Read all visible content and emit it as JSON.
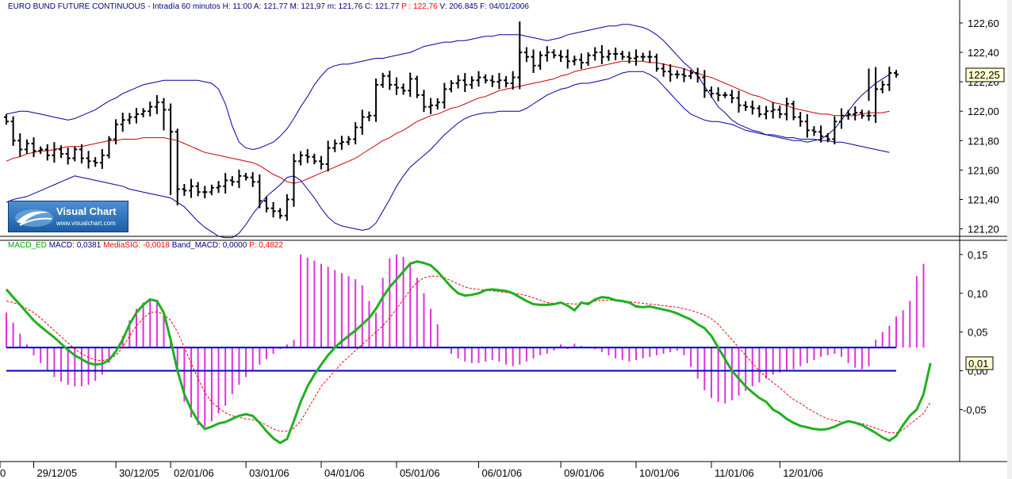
{
  "header": {
    "title": "EURO BUND FUTURE CONTINUOUS - Intradía 60 minutos",
    "fields": [
      {
        "text": "H: 11:00",
        "color": "#000080"
      },
      {
        "text": "A: 121,77",
        "color": "#000080"
      },
      {
        "text": "M: 121,97",
        "color": "#000080"
      },
      {
        "text": "m: 121,76",
        "color": "#000080"
      },
      {
        "text": "C: 121,77",
        "color": "#000080"
      },
      {
        "text": "P : 122,76",
        "color": "#ff0000"
      },
      {
        "text": "V: 206.845",
        "color": "#000080"
      },
      {
        "text": "F: 04/01/2006",
        "color": "#000080"
      }
    ]
  },
  "macd_header": {
    "fields": [
      {
        "text": "MACD_ED",
        "color": "#00aa00"
      },
      {
        "text": "MACD: 0,0381",
        "color": "#000080"
      },
      {
        "text": "MediaSIG: -0,0018",
        "color": "#ff0000"
      },
      {
        "text": "Band_MACD: 0,0000",
        "color": "#000080"
      },
      {
        "text": "P: 0,4822",
        "color": "#ff0000"
      }
    ]
  },
  "logo": {
    "name": "Visual Chart",
    "url": "www.visualchart.com"
  },
  "x_axis_labels": [
    "0",
    "29/12/05",
    "30/12/05",
    "02/01/06",
    "03/01/06",
    "04/01/06",
    "05/01/06",
    "06/01/06",
    "09/01/06",
    "10/01/06",
    "11/01/06",
    "12/01/06"
  ],
  "colors": {
    "price": "#000000",
    "bb_outer": "#0000a0",
    "bb_mid": "#cc0000",
    "macd": "#20b020",
    "signal": "#ff0000",
    "hist": "#e030e0",
    "band": "#0000cc"
  },
  "chart_data": [
    {
      "type": "line",
      "title": "EURO BUND FUTURE CONTINUOUS - Intradía 60 minutos",
      "subtype": "ohlc-bars with bollinger bands",
      "y_ticks": [
        "122,60",
        "122,40",
        "122,20",
        "122,00",
        "121,80",
        "121,60",
        "121,40",
        "121,20"
      ],
      "ylim": [
        121.16,
        122.67
      ],
      "last_price_label": "122,25",
      "close": [
        121.93,
        121.8,
        121.74,
        121.78,
        121.73,
        121.74,
        121.7,
        121.74,
        121.71,
        121.68,
        121.74,
        121.68,
        121.66,
        121.65,
        121.7,
        121.81,
        121.91,
        121.94,
        121.96,
        121.98,
        122.0,
        122.03,
        122.06,
        122.01,
        121.86,
        121.47,
        121.46,
        121.49,
        121.45,
        121.45,
        121.48,
        121.49,
        121.53,
        121.52,
        121.56,
        121.55,
        121.52,
        121.39,
        121.34,
        121.32,
        121.29,
        121.4,
        121.66,
        121.7,
        121.69,
        121.66,
        121.64,
        121.75,
        121.78,
        121.79,
        121.81,
        121.89,
        121.96,
        121.97,
        122.18,
        122.24,
        122.18,
        122.16,
        122.14,
        122.22,
        122.11,
        122.03,
        122.04,
        122.06,
        122.15,
        122.19,
        122.21,
        122.18,
        122.21,
        122.23,
        122.21,
        122.2,
        122.21,
        122.19,
        122.23,
        122.4,
        122.37,
        122.31,
        122.38,
        122.4,
        122.38,
        122.37,
        122.34,
        122.35,
        122.33,
        122.38,
        122.4,
        122.37,
        122.39,
        122.39,
        122.37,
        122.36,
        122.37,
        122.37,
        122.37,
        122.29,
        122.27,
        122.25,
        122.25,
        122.24,
        122.26,
        122.23,
        122.14,
        122.12,
        122.11,
        122.11,
        122.09,
        122.04,
        122.03,
        122.02,
        121.98,
        122.0,
        122.01,
        121.98,
        122.05,
        121.96,
        121.93,
        121.87,
        121.86,
        121.83,
        121.81,
        121.93,
        121.97,
        121.98,
        121.99,
        121.97,
        121.97,
        122.15,
        122.18,
        122.26,
        122.25
      ],
      "bb_mid": [
        121.66,
        121.68,
        121.69,
        121.71,
        121.72,
        121.73,
        121.73,
        121.74,
        121.75,
        121.76,
        121.76,
        121.76,
        121.77,
        121.78,
        121.79,
        121.8,
        121.8,
        121.81,
        121.81,
        121.81,
        121.82,
        121.82,
        121.82,
        121.82,
        121.81,
        121.8,
        121.78,
        121.76,
        121.74,
        121.72,
        121.71,
        121.7,
        121.69,
        121.68,
        121.67,
        121.66,
        121.65,
        121.63,
        121.6,
        121.57,
        121.55,
        121.52,
        121.51,
        121.52,
        121.54,
        121.56,
        121.58,
        121.6,
        121.62,
        121.64,
        121.66,
        121.68,
        121.71,
        121.74,
        121.77,
        121.8,
        121.82,
        121.85,
        121.87,
        121.9,
        121.93,
        121.95,
        121.97,
        121.98,
        122.0,
        122.02,
        122.03,
        122.05,
        122.07,
        122.09,
        122.1,
        122.12,
        122.14,
        122.15,
        122.16,
        122.17,
        122.18,
        122.19,
        122.2,
        122.21,
        122.22,
        122.24,
        122.25,
        122.27,
        122.28,
        122.29,
        122.3,
        122.31,
        122.32,
        122.33,
        122.34,
        122.34,
        122.34,
        122.34,
        122.33,
        122.33,
        122.32,
        122.31,
        122.3,
        122.29,
        122.27,
        122.26,
        122.24,
        122.23,
        122.21,
        122.19,
        122.17,
        122.15,
        122.13,
        122.11,
        122.1,
        122.08,
        122.06,
        122.05,
        122.04,
        122.02,
        122.01,
        122.0,
        121.99,
        121.98,
        121.98,
        121.97,
        121.97,
        121.97,
        121.97,
        121.98,
        121.99,
        121.99,
        121.99,
        122.0
      ],
      "bb_upper": [
        121.98,
        121.99,
        122.0,
        122.0,
        121.99,
        121.98,
        121.97,
        121.96,
        121.95,
        121.94,
        121.95,
        121.97,
        121.99,
        122.01,
        122.04,
        122.07,
        122.09,
        122.12,
        122.14,
        122.16,
        122.18,
        122.19,
        122.2,
        122.21,
        122.21,
        122.21,
        122.21,
        122.21,
        122.21,
        122.2,
        122.19,
        122.15,
        122.05,
        121.9,
        121.79,
        121.75,
        121.74,
        121.75,
        121.77,
        121.79,
        121.83,
        121.88,
        121.95,
        122.03,
        122.1,
        122.18,
        122.24,
        122.29,
        122.31,
        122.32,
        122.32,
        122.33,
        122.34,
        122.35,
        122.36,
        122.36,
        122.37,
        122.38,
        122.39,
        122.4,
        122.42,
        122.44,
        122.45,
        122.46,
        122.47,
        122.47,
        122.48,
        122.48,
        122.49,
        122.5,
        122.51,
        122.51,
        122.52,
        122.52,
        122.52,
        122.52,
        122.51,
        122.5,
        122.49,
        122.48,
        122.49,
        122.5,
        122.52,
        122.53,
        122.54,
        122.55,
        122.56,
        122.57,
        122.58,
        122.58,
        122.59,
        122.59,
        122.58,
        122.57,
        122.55,
        122.52,
        122.48,
        122.43,
        122.38,
        122.33,
        122.29,
        122.24,
        122.17,
        122.1,
        122.03,
        121.99,
        121.94,
        121.91,
        121.89,
        121.87,
        121.86,
        121.84,
        121.84,
        121.83,
        121.82,
        121.82,
        121.81,
        121.81,
        121.81,
        121.8,
        121.8,
        121.79,
        121.79,
        121.78,
        121.77,
        121.76,
        121.75,
        121.74,
        121.73,
        121.72
      ],
      "bb_lower": [
        121.38,
        121.4,
        121.41,
        121.42,
        121.44,
        121.46,
        121.48,
        121.5,
        121.52,
        121.54,
        121.56,
        121.55,
        121.54,
        121.53,
        121.52,
        121.51,
        121.5,
        121.49,
        121.47,
        121.46,
        121.45,
        121.44,
        121.43,
        121.42,
        121.41,
        121.38,
        121.35,
        121.3,
        121.25,
        121.21,
        121.18,
        121.15,
        121.14,
        121.14,
        121.17,
        121.23,
        121.3,
        121.36,
        121.42,
        121.46,
        121.5,
        121.55,
        121.56,
        121.53,
        121.47,
        121.41,
        121.34,
        121.28,
        121.24,
        121.22,
        121.21,
        121.2,
        121.19,
        121.2,
        121.24,
        121.32,
        121.4,
        121.49,
        121.56,
        121.62,
        121.66,
        121.7,
        121.74,
        121.79,
        121.84,
        121.88,
        121.92,
        121.95,
        121.97,
        121.98,
        121.99,
        121.99,
        122.0,
        122.0,
        122.0,
        122.0,
        122.02,
        122.05,
        122.08,
        122.11,
        122.13,
        122.15,
        122.16,
        122.18,
        122.19,
        122.19,
        122.2,
        122.21,
        122.22,
        122.24,
        122.26,
        122.27,
        122.27,
        122.27,
        122.25,
        122.22,
        122.17,
        122.12,
        122.07,
        122.02,
        121.98,
        121.96,
        121.94,
        121.93,
        121.93,
        121.92,
        121.91,
        121.89,
        121.87,
        121.86,
        121.85,
        121.84,
        121.83,
        121.82,
        121.81,
        121.8,
        121.8,
        121.79,
        121.8,
        121.81,
        121.84,
        121.88,
        121.94,
        122.0,
        122.06,
        122.11,
        122.15,
        122.19,
        122.22,
        122.25
      ]
    },
    {
      "type": "line",
      "title": "MACD_ED",
      "y_ticks": [
        "0,15",
        "0,10",
        "0,05",
        "0,00",
        "-0,05"
      ],
      "ylim": [
        -0.115,
        0.155
      ],
      "last_value_label": "0,01",
      "band_level": 0.03,
      "series": [
        {
          "name": "MACD",
          "values": [
            0.105,
            0.095,
            0.085,
            0.075,
            0.065,
            0.057,
            0.05,
            0.043,
            0.035,
            0.027,
            0.02,
            0.015,
            0.01,
            0.008,
            0.009,
            0.014,
            0.025,
            0.04,
            0.06,
            0.075,
            0.085,
            0.092,
            0.09,
            0.075,
            0.04,
            0.0,
            -0.03,
            -0.05,
            -0.065,
            -0.075,
            -0.072,
            -0.068,
            -0.066,
            -0.062,
            -0.058,
            -0.056,
            -0.058,
            -0.067,
            -0.078,
            -0.087,
            -0.093,
            -0.088,
            -0.065,
            -0.04,
            -0.02,
            -0.005,
            0.008,
            0.02,
            0.03,
            0.038,
            0.045,
            0.052,
            0.06,
            0.068,
            0.08,
            0.095,
            0.108,
            0.118,
            0.128,
            0.138,
            0.141,
            0.139,
            0.136,
            0.128,
            0.118,
            0.108,
            0.1,
            0.097,
            0.098,
            0.1,
            0.104,
            0.105,
            0.104,
            0.103,
            0.1,
            0.095,
            0.09,
            0.086,
            0.085,
            0.085,
            0.086,
            0.088,
            0.084,
            0.078,
            0.088,
            0.086,
            0.092,
            0.095,
            0.094,
            0.091,
            0.09,
            0.088,
            0.083,
            0.082,
            0.083,
            0.081,
            0.079,
            0.077,
            0.074,
            0.07,
            0.066,
            0.06,
            0.055,
            0.045,
            0.03,
            0.015,
            0.0,
            -0.01,
            -0.02,
            -0.028,
            -0.035,
            -0.04,
            -0.05,
            -0.055,
            -0.062,
            -0.067,
            -0.071,
            -0.073,
            -0.075,
            -0.076,
            -0.075,
            -0.072,
            -0.068,
            -0.065,
            -0.067,
            -0.07,
            -0.075,
            -0.08,
            -0.086,
            -0.09,
            -0.084,
            -0.07,
            -0.058,
            -0.05,
            -0.03,
            0.01
          ]
        },
        {
          "name": "MediaSIG",
          "values": [
            0.09,
            0.088,
            0.085,
            0.08,
            0.075,
            0.068,
            0.06,
            0.052,
            0.044,
            0.036,
            0.028,
            0.022,
            0.017,
            0.014,
            0.013,
            0.015,
            0.02,
            0.03,
            0.045,
            0.058,
            0.068,
            0.075,
            0.076,
            0.073,
            0.065,
            0.05,
            0.03,
            0.01,
            -0.01,
            -0.028,
            -0.04,
            -0.048,
            -0.054,
            -0.058,
            -0.06,
            -0.062,
            -0.063,
            -0.066,
            -0.07,
            -0.075,
            -0.078,
            -0.078,
            -0.074,
            -0.065,
            -0.05,
            -0.035,
            -0.02,
            -0.01,
            0.0,
            0.01,
            0.018,
            0.026,
            0.034,
            0.042,
            0.05,
            0.058,
            0.068,
            0.08,
            0.092,
            0.104,
            0.114,
            0.12,
            0.122,
            0.122,
            0.12,
            0.116,
            0.112,
            0.108,
            0.106,
            0.105,
            0.104,
            0.103,
            0.102,
            0.101,
            0.1,
            0.099,
            0.097,
            0.094,
            0.091,
            0.088,
            0.087,
            0.087,
            0.087,
            0.086,
            0.087,
            0.088,
            0.09,
            0.091,
            0.091,
            0.091,
            0.09,
            0.089,
            0.088,
            0.087,
            0.086,
            0.085,
            0.084,
            0.083,
            0.082,
            0.08,
            0.078,
            0.075,
            0.072,
            0.067,
            0.06,
            0.05,
            0.04,
            0.03,
            0.02,
            0.01,
            0.0,
            -0.008,
            -0.015,
            -0.022,
            -0.03,
            -0.037,
            -0.042,
            -0.048,
            -0.053,
            -0.058,
            -0.062,
            -0.064,
            -0.066,
            -0.066,
            -0.067,
            -0.068,
            -0.071,
            -0.074,
            -0.077,
            -0.08,
            -0.08,
            -0.076,
            -0.069,
            -0.062,
            -0.055,
            -0.04
          ]
        },
        {
          "name": "Band_MACD",
          "values": [
            0.0
          ]
        }
      ],
      "histogram": {
        "name": "Histogram",
        "baseline": 0.03,
        "values": [
          0.045,
          0.032,
          0.018,
          0.004,
          -0.01,
          -0.02,
          -0.03,
          -0.038,
          -0.044,
          -0.048,
          -0.05,
          -0.05,
          -0.048,
          -0.043,
          -0.035,
          -0.02,
          0.0,
          0.015,
          0.035,
          0.05,
          0.058,
          0.062,
          0.06,
          0.045,
          0.01,
          -0.03,
          -0.07,
          -0.09,
          -0.1,
          -0.102,
          -0.095,
          -0.085,
          -0.075,
          -0.06,
          -0.048,
          -0.038,
          -0.03,
          -0.022,
          -0.015,
          -0.008,
          -0.002,
          0.004,
          0.01,
          0.12,
          0.116,
          0.112,
          0.108,
          0.104,
          0.1,
          0.096,
          0.092,
          0.088,
          0.08,
          0.06,
          0.045,
          0.09,
          0.115,
          0.12,
          0.117,
          0.11,
          0.09,
          0.07,
          0.05,
          0.03,
          0.0,
          -0.008,
          -0.014,
          -0.018,
          -0.02,
          -0.02,
          -0.018,
          -0.016,
          -0.018,
          -0.022,
          -0.024,
          -0.022,
          -0.018,
          -0.014,
          -0.01,
          -0.008,
          -0.004,
          0.004,
          -0.002,
          0.005,
          0.002,
          0.0,
          -0.002,
          -0.006,
          -0.01,
          -0.014,
          -0.016,
          -0.018,
          -0.016,
          -0.014,
          -0.012,
          -0.01,
          -0.008,
          -0.006,
          -0.004,
          -0.01,
          -0.025,
          -0.04,
          -0.055,
          -0.065,
          -0.07,
          -0.072,
          -0.068,
          -0.062,
          -0.056,
          -0.05,
          -0.045,
          -0.04,
          -0.035,
          -0.032,
          -0.03,
          -0.028,
          -0.024,
          -0.02,
          -0.016,
          -0.012,
          -0.01,
          -0.008,
          -0.012,
          -0.02,
          -0.026,
          -0.028,
          -0.024,
          0.01,
          0.02,
          0.028,
          0.04,
          0.048,
          0.06,
          0.092,
          0.108
        ]
      }
    }
  ]
}
